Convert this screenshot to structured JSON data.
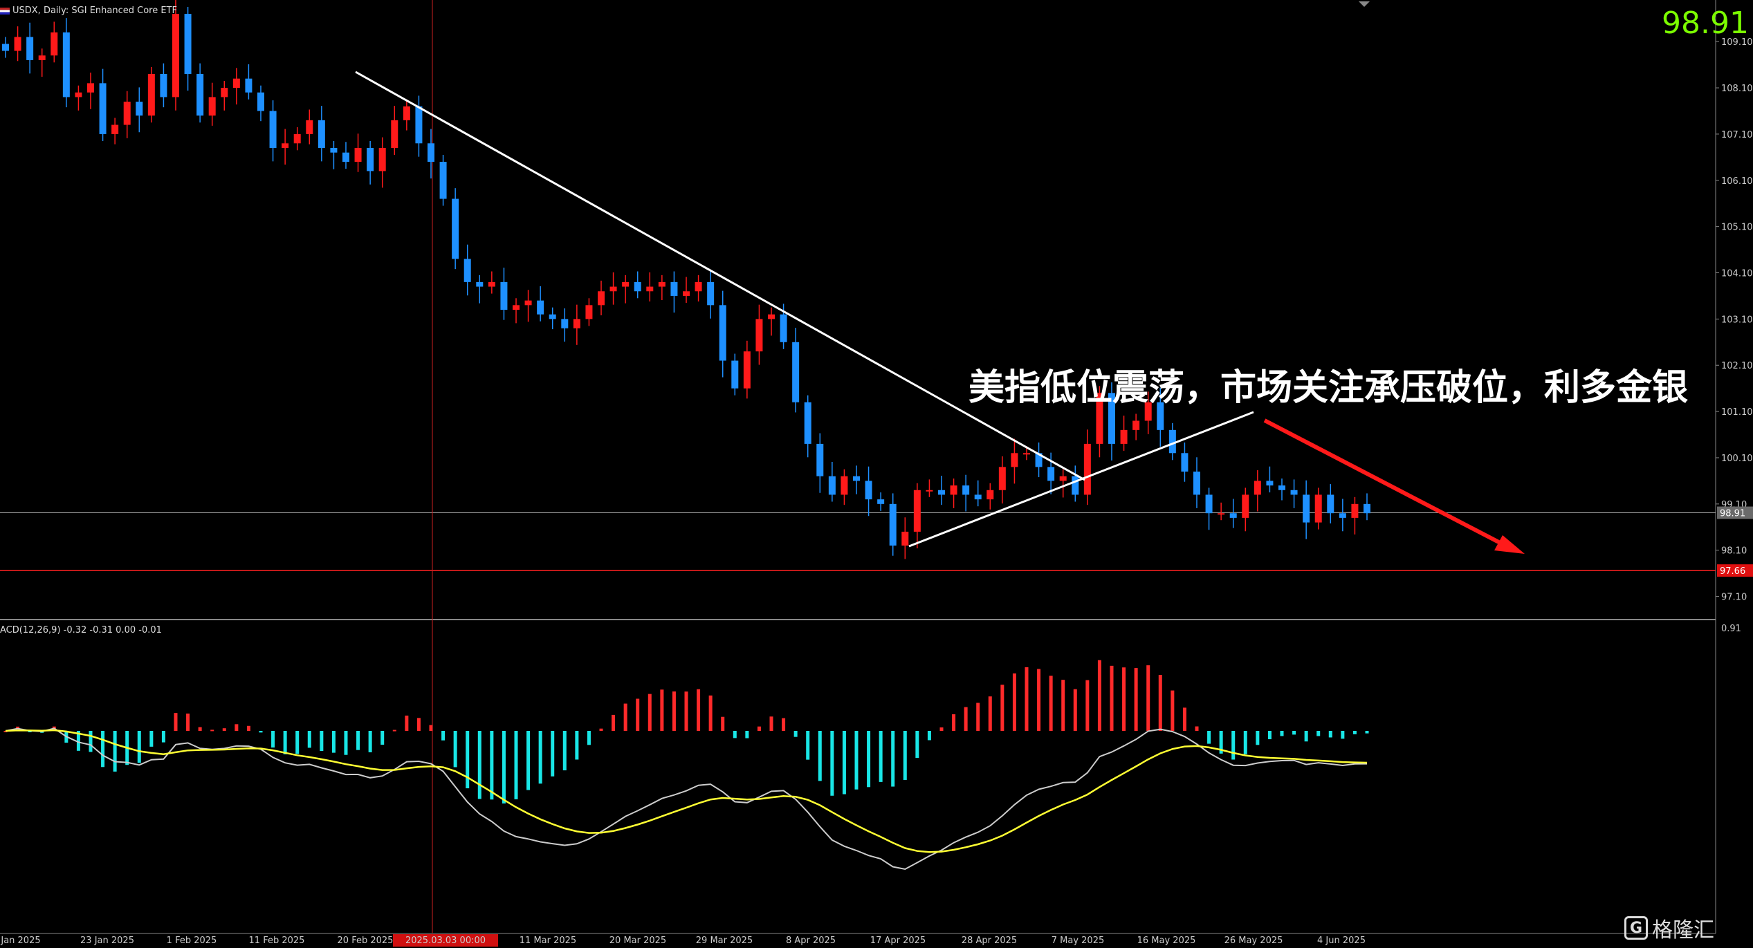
{
  "header": {
    "symbol_text": "USDX, Daily:  SGI Enhanced Core ETF"
  },
  "bid_price": "98.91",
  "annotation": "美指低位震荡，市场关注承压破位，利多金银",
  "macd_label": "ACD(12,26,9) -0.32 -0.31 0.00 -0.01",
  "watermark": "格隆汇",
  "colors": {
    "up": "#ff1a1a",
    "down": "#1e90ff",
    "macd_pos": "#ff2a2a",
    "macd_neg": "#19e6e6",
    "signal": "#ffff33",
    "macd_line": "#cccccc",
    "trend": "#ffffff",
    "arrow": "#ff1a1a"
  },
  "chart_data": [
    {
      "type": "candlestick",
      "title": "USDX, Daily",
      "price_axis": {
        "min": 96.6,
        "max": 110.0,
        "ticks": [
          "109.10",
          "108.10",
          "107.10",
          "106.10",
          "105.10",
          "104.10",
          "103.10",
          "102.10",
          "101.10",
          "100.10",
          "99.10",
          "98.10",
          "97.10"
        ]
      },
      "current_price_label": "98.91",
      "support_price_label": "97.66",
      "date_labels": [
        "Jan 2025",
        "23 Jan 2025",
        "1 Feb 2025",
        "11 Feb 2025",
        "20 Feb 2025",
        "2025.03.03 00:00",
        "11 Mar 2025",
        "20 Mar 2025",
        "29 Mar 2025",
        "8 Apr 2025",
        "17 Apr 2025",
        "28 Apr 2025",
        "7 May 2025",
        "16 May 2025",
        "26 May 2025",
        "4 Jun 2025"
      ],
      "closes": [
        108.9,
        109.2,
        108.7,
        108.8,
        109.3,
        107.9,
        108.0,
        108.2,
        107.1,
        107.3,
        107.8,
        107.5,
        108.4,
        107.9,
        109.7,
        108.4,
        107.5,
        107.9,
        108.1,
        108.3,
        108.0,
        107.6,
        106.8,
        106.9,
        107.1,
        107.4,
        106.8,
        106.7,
        106.5,
        106.8,
        106.3,
        106.8,
        107.4,
        107.7,
        106.9,
        106.5,
        105.7,
        104.4,
        103.9,
        103.8,
        103.9,
        103.3,
        103.4,
        103.5,
        103.2,
        103.1,
        102.9,
        103.1,
        103.4,
        103.7,
        103.8,
        103.9,
        103.7,
        103.8,
        103.9,
        103.6,
        103.7,
        103.9,
        103.4,
        102.2,
        101.6,
        102.4,
        103.1,
        103.2,
        102.6,
        101.3,
        100.4,
        99.7,
        99.3,
        99.7,
        99.6,
        99.2,
        99.1,
        98.2,
        98.5,
        99.4,
        99.4,
        99.3,
        99.5,
        99.3,
        99.2,
        99.4,
        99.9,
        100.2,
        100.2,
        99.9,
        99.6,
        99.7,
        99.3,
        100.4,
        101.5,
        100.4,
        100.7,
        100.9,
        101.3,
        100.7,
        100.2,
        99.8,
        99.3,
        98.9,
        98.9,
        98.8,
        99.3,
        99.6,
        99.5,
        99.4,
        99.3,
        98.7,
        99.3,
        98.9,
        98.8,
        99.1,
        98.9
      ]
    },
    {
      "type": "bar",
      "title": "MACD(12,26,9)",
      "macd_values": [
        -0.32,
        -0.31,
        0.0,
        -0.01
      ],
      "histogram_sign_by_date": [
        "neg Jan 2025 – late Feb 2025",
        "pos late Feb 2025",
        "neg Mar 2025",
        "pos mid Mar – early Apr 2025",
        "neg Apr 2025",
        "pos late Apr – mid May 2025",
        "neg late May – Jun 2025"
      ]
    }
  ]
}
